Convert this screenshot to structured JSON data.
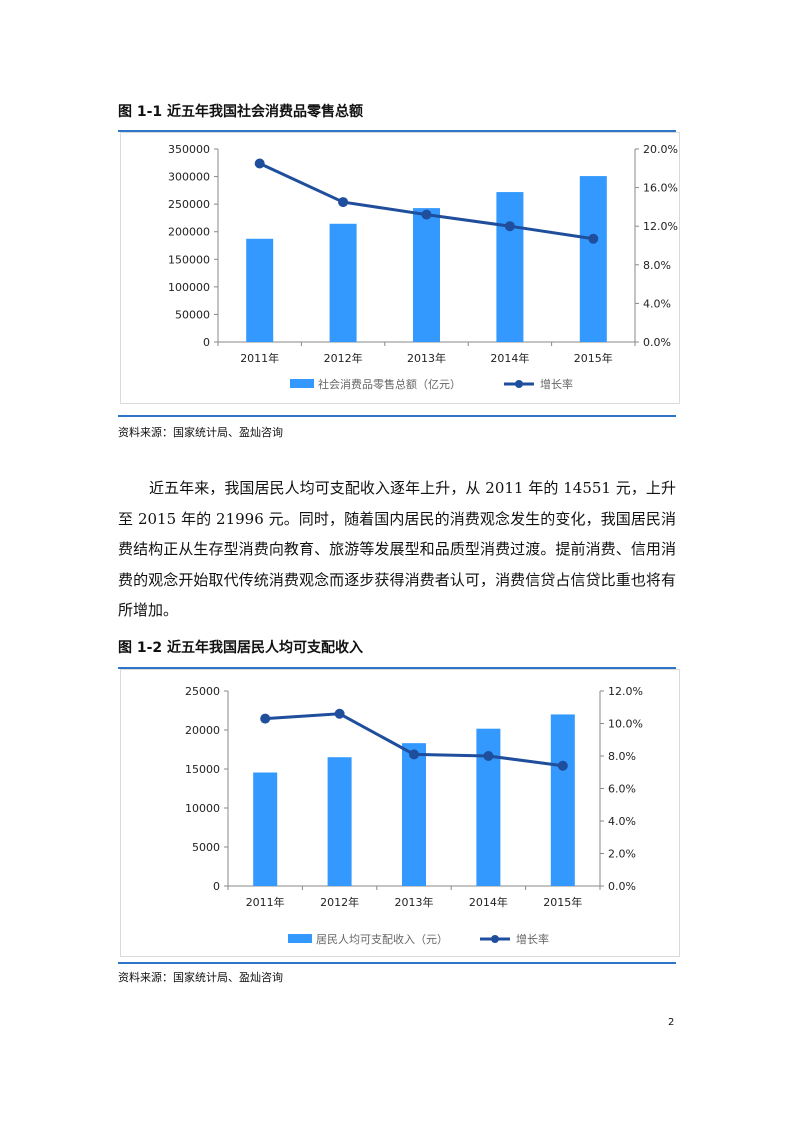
{
  "figure1": {
    "title": "图 1-1 近五年我国社会消费品零售总额",
    "source": "资料来源：国家统计局、盈灿咨询"
  },
  "figure2": {
    "title": "图 1-2 近五年我国居民人均可支配收入",
    "source": "资料来源：国家统计局、盈灿咨询"
  },
  "body_text": "近五年来，我国居民人均可支配收入逐年上升，从 2011 年的 14551 元，上升至 2015 年的 21996 元。同时，随着国内居民的消费观念发生的变化，我国居民消费结构正从生存型消费向教育、旅游等发展型和品质型消费过渡。提前消费、信用消费的观念开始取代传统消费观念而逐步获得消费者认可，消费信贷占信贷比重也将有所增加。",
  "page_number": "2",
  "colors": {
    "bar": "#3399ff",
    "line": "#1f4e9c",
    "rule": "#2f75c7"
  },
  "chart_data": [
    {
      "type": "bar",
      "categories": [
        "2011年",
        "2012年",
        "2013年",
        "2014年",
        "2015年"
      ],
      "series": [
        {
          "name": "社会消费品零售总额（亿元）",
          "type": "bar",
          "axis": "left",
          "values": [
            187200,
            214400,
            242800,
            271900,
            300900
          ]
        },
        {
          "name": "增长率",
          "type": "line",
          "axis": "right",
          "values": [
            0.185,
            0.145,
            0.132,
            0.12,
            0.107
          ]
        }
      ],
      "y_left": {
        "min": 0,
        "max": 350000,
        "ticks": [
          "0",
          "50000",
          "100000",
          "150000",
          "200000",
          "250000",
          "300000",
          "350000"
        ]
      },
      "y_right": {
        "min": 0,
        "max": 0.2,
        "ticks": [
          "0.0%",
          "4.0%",
          "8.0%",
          "12.0%",
          "16.0%",
          "20.0%"
        ]
      },
      "legend": "bottom",
      "grid": false
    },
    {
      "type": "bar",
      "categories": [
        "2011年",
        "2012年",
        "2013年",
        "2014年",
        "2015年"
      ],
      "series": [
        {
          "name": "居民人均可支配收入（元）",
          "type": "bar",
          "axis": "left",
          "values": [
            14551,
            16510,
            18311,
            20167,
            21996
          ]
        },
        {
          "name": "增长率",
          "type": "line",
          "axis": "right",
          "values": [
            0.103,
            0.106,
            0.081,
            0.08,
            0.074
          ]
        }
      ],
      "y_left": {
        "min": 0,
        "max": 25000,
        "ticks": [
          "0",
          "5000",
          "10000",
          "15000",
          "20000",
          "25000"
        ]
      },
      "y_right": {
        "min": 0,
        "max": 0.12,
        "ticks": [
          "0.0%",
          "2.0%",
          "4.0%",
          "6.0%",
          "8.0%",
          "10.0%",
          "12.0%"
        ]
      },
      "legend": "bottom",
      "grid": false
    }
  ]
}
